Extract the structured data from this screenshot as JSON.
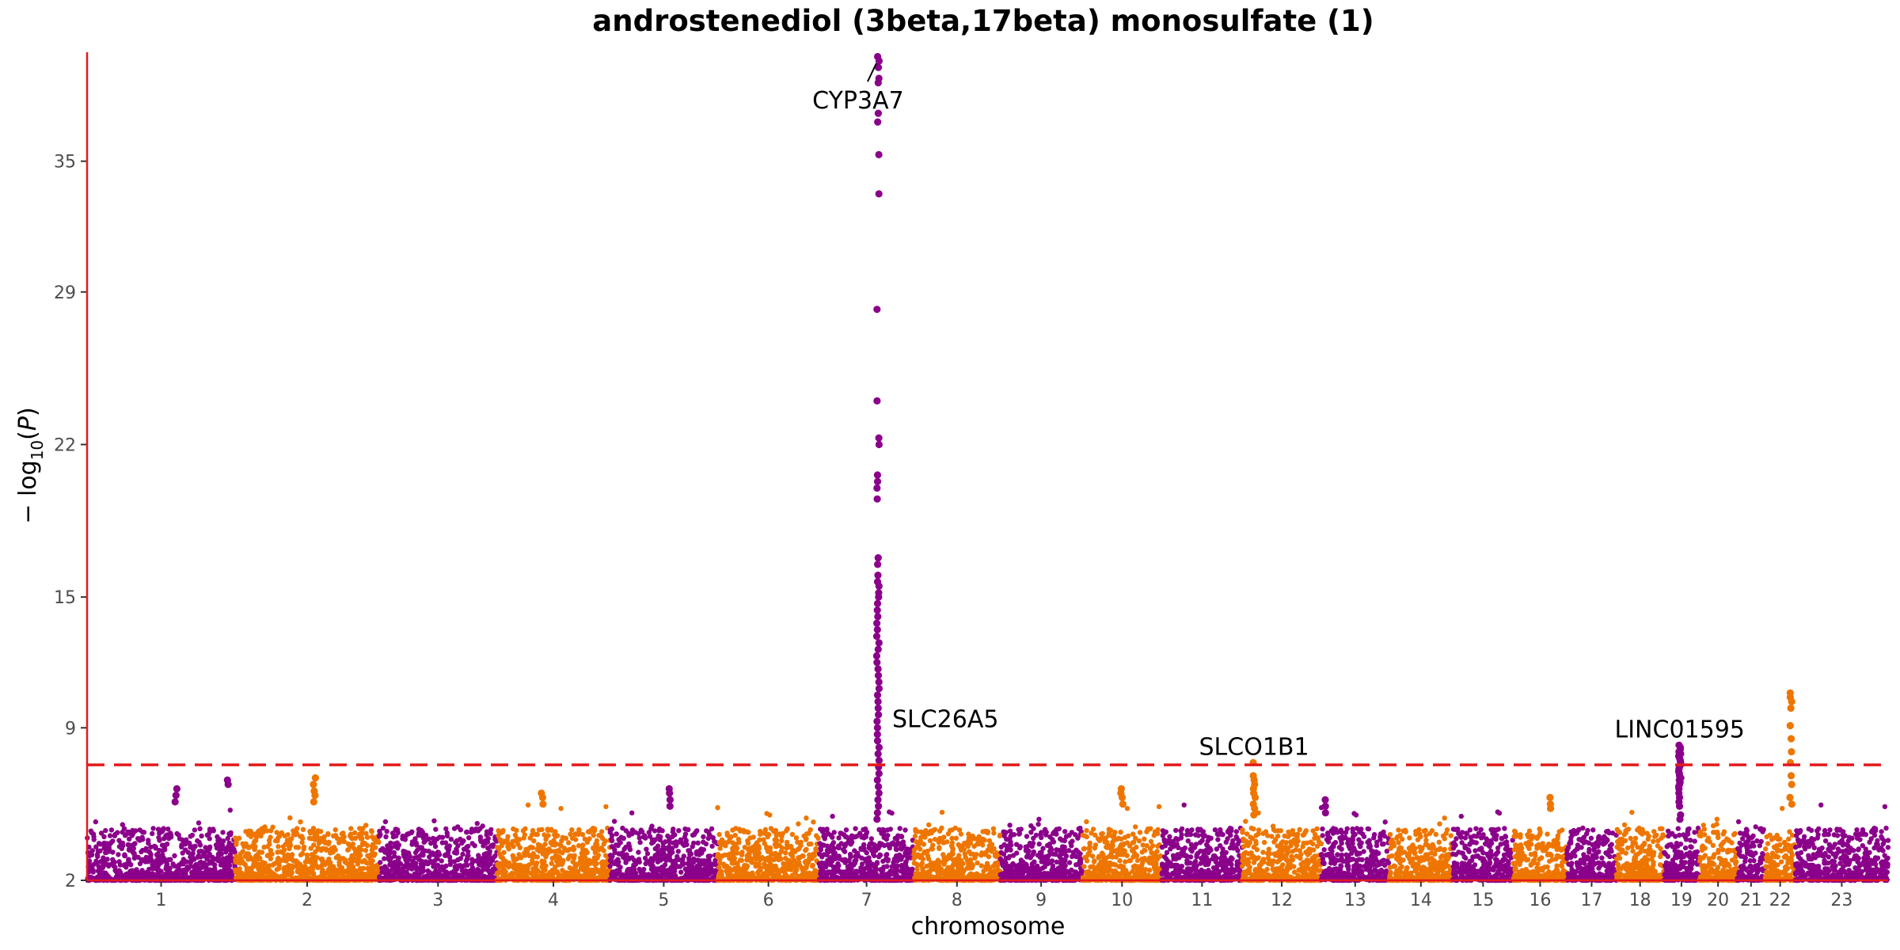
{
  "chart_data": {
    "type": "scatter",
    "subtype": "manhattan",
    "title": "androstenediol (3beta,17beta) monosulfate (1)",
    "xlabel": "chromosome",
    "ylabel": "−log10(P)",
    "ylim": [
      2,
      40
    ],
    "yticks": [
      2,
      9,
      15,
      22,
      29,
      35
    ],
    "significance_threshold": 7.3,
    "colors": {
      "odd": "#8B008B",
      "even": "#EE7600",
      "threshold": "#E41A1C",
      "axis": "#E41A1C"
    },
    "chromosomes": [
      {
        "label": "1",
        "size": 249
      },
      {
        "label": "2",
        "size": 242
      },
      {
        "label": "3",
        "size": 198
      },
      {
        "label": "4",
        "size": 190
      },
      {
        "label": "5",
        "size": 181
      },
      {
        "label": "6",
        "size": 171
      },
      {
        "label": "7",
        "size": 159
      },
      {
        "label": "8",
        "size": 145
      },
      {
        "label": "9",
        "size": 138
      },
      {
        "label": "10",
        "size": 134
      },
      {
        "label": "11",
        "size": 135
      },
      {
        "label": "12",
        "size": 133
      },
      {
        "label": "13",
        "size": 114
      },
      {
        "label": "14",
        "size": 107
      },
      {
        "label": "15",
        "size": 102
      },
      {
        "label": "16",
        "size": 90
      },
      {
        "label": "17",
        "size": 83
      },
      {
        "label": "18",
        "size": 80
      },
      {
        "label": "19",
        "size": 59
      },
      {
        "label": "20",
        "size": 64
      },
      {
        "label": "21",
        "size": 47
      },
      {
        "label": "22",
        "size": 51
      },
      {
        "label": "23",
        "size": 156
      }
    ],
    "peaks": [
      {
        "chr": "7",
        "frac": 0.62,
        "values": [
          39.8,
          39.6,
          39.3,
          38.8,
          38.6,
          37.2,
          36.8,
          35.3,
          33.5,
          28.2,
          24.0,
          22.3,
          22.0,
          20.6,
          20.3,
          20.0,
          19.5,
          16.8,
          16.5,
          16.0,
          15.7,
          15.5,
          15.2,
          15.0,
          14.7,
          14.4,
          14.1,
          13.8,
          13.5,
          13.2,
          12.9,
          12.6,
          12.3,
          12.0,
          11.7,
          11.4,
          11.1,
          10.8,
          10.5,
          10.2,
          9.9,
          9.6,
          9.3,
          9.0,
          8.7,
          8.4,
          8.1,
          7.8,
          7.5,
          7.2,
          6.9,
          6.6,
          6.3,
          6.0,
          5.7,
          5.4,
          5.1,
          4.8
        ]
      },
      {
        "chr": "12",
        "frac": 0.15,
        "values": [
          7.4,
          6.8,
          6.6,
          6.4,
          6.2,
          6.0,
          5.8,
          5.5,
          5.3,
          5.0
        ]
      },
      {
        "chr": "19",
        "frac": 0.45,
        "values": [
          8.2,
          8.1,
          8.0,
          7.9,
          7.8,
          7.7,
          7.6,
          7.5,
          7.4,
          7.3,
          7.2,
          7.1,
          7.0,
          6.9,
          6.8,
          6.7,
          6.6,
          6.5,
          6.4,
          6.3,
          6.2,
          6.0,
          5.8,
          5.6,
          5.4,
          5.0,
          4.8
        ]
      },
      {
        "chr": "22",
        "frac": 0.85,
        "values": [
          10.6,
          10.4,
          10.2,
          9.9,
          9.1,
          8.5,
          7.9,
          7.4,
          6.8,
          6.4,
          5.8,
          5.5
        ]
      },
      {
        "chr": "2",
        "frac": 0.55,
        "values": [
          6.7,
          6.4,
          6.1,
          5.9,
          5.6
        ]
      },
      {
        "chr": "1",
        "frac": 0.6,
        "values": [
          6.2,
          5.9,
          5.6
        ]
      },
      {
        "chr": "1",
        "frac": 0.95,
        "values": [
          6.6,
          6.4
        ]
      },
      {
        "chr": "4",
        "frac": 0.4,
        "values": [
          6.0,
          5.8,
          5.5
        ]
      },
      {
        "chr": "5",
        "frac": 0.55,
        "values": [
          6.2,
          6.0,
          5.7,
          5.4
        ]
      },
      {
        "chr": "10",
        "frac": 0.5,
        "values": [
          6.2,
          6.0,
          5.8,
          5.5
        ]
      },
      {
        "chr": "16",
        "frac": 0.7,
        "values": [
          5.8,
          5.5,
          5.3
        ]
      },
      {
        "chr": "13",
        "frac": 0.05,
        "values": [
          5.7,
          5.4,
          5.1
        ]
      }
    ],
    "annotations": [
      {
        "gene": "CYP3A7",
        "chr": "7",
        "frac": 0.62,
        "value": 39.6
      },
      {
        "gene": "SLC26A5",
        "chr": "7",
        "frac": 0.62,
        "value": 9.4
      },
      {
        "gene": "SLCO1B1",
        "chr": "12",
        "frac": 0.15,
        "value": 7.4
      },
      {
        "gene": "LINC01595",
        "chr": "19",
        "frac": 0.45,
        "value": 8.2
      }
    ]
  }
}
